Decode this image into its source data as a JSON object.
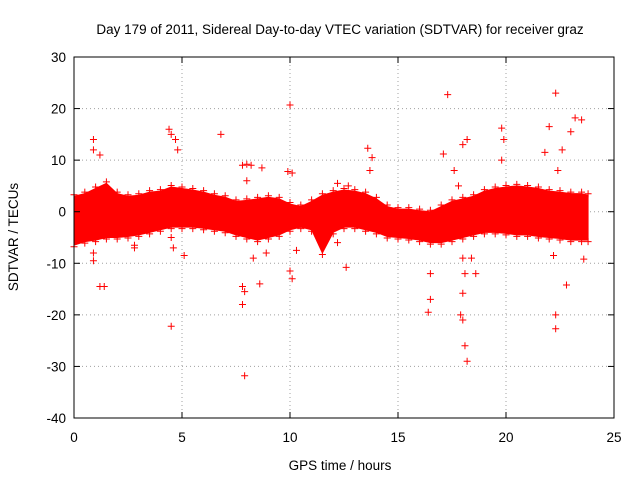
{
  "chart_data": {
    "type": "scatter",
    "title": "Day 179 of 2011, Sidereal Day-to-day VTEC variation (SDTVAR) for receiver graz",
    "xlabel": "GPS time / hours",
    "ylabel": "SDTVAR / TECUs",
    "xlim": [
      0,
      25
    ],
    "ylim": [
      -40,
      30
    ],
    "xticks": [
      0,
      5,
      10,
      15,
      20,
      25
    ],
    "yticks": [
      -40,
      -30,
      -20,
      -10,
      0,
      10,
      20,
      30
    ],
    "grid": true,
    "legend": "none",
    "marker": "+",
    "series_color": "#ff0000",
    "band_data": {
      "description": "dense point cloud: approximate upper/lower envelope of the bulk of points",
      "x": [
        0.0,
        0.5,
        1.0,
        1.5,
        2.0,
        2.5,
        3.0,
        3.5,
        4.0,
        4.5,
        5.0,
        5.5,
        6.0,
        6.5,
        7.0,
        7.5,
        8.0,
        8.5,
        9.0,
        9.5,
        10.0,
        10.5,
        11.0,
        11.5,
        12.0,
        12.5,
        13.0,
        13.5,
        14.0,
        14.5,
        15.0,
        15.5,
        16.0,
        16.5,
        17.0,
        17.5,
        18.0,
        18.5,
        19.0,
        19.5,
        20.0,
        20.5,
        21.0,
        21.5,
        22.0,
        22.5,
        23.0,
        23.5,
        23.8
      ],
      "upper": [
        3.0,
        3.5,
        4.5,
        5.5,
        3.5,
        3.0,
        3.2,
        3.8,
        4.0,
        4.8,
        4.5,
        4.2,
        3.8,
        3.2,
        2.8,
        2.0,
        2.2,
        2.5,
        2.8,
        2.5,
        1.5,
        1.0,
        2.0,
        3.2,
        3.8,
        4.2,
        4.0,
        3.5,
        2.5,
        1.0,
        0.5,
        0.5,
        0.2,
        0.0,
        1.0,
        2.0,
        2.5,
        3.0,
        4.0,
        4.5,
        4.8,
        5.0,
        4.8,
        4.5,
        4.0,
        3.8,
        3.5,
        3.5,
        3.2
      ],
      "lower": [
        -6.5,
        -5.8,
        -5.5,
        -5.0,
        -5.0,
        -4.8,
        -4.5,
        -4.0,
        -3.5,
        -3.0,
        -3.0,
        -3.0,
        -3.2,
        -3.5,
        -3.8,
        -4.5,
        -5.0,
        -5.5,
        -5.0,
        -4.5,
        -3.5,
        -3.0,
        -3.5,
        -8.0,
        -4.0,
        -3.0,
        -3.0,
        -3.5,
        -4.0,
        -4.8,
        -5.0,
        -5.2,
        -5.5,
        -6.0,
        -6.0,
        -5.5,
        -5.0,
        -4.5,
        -4.0,
        -4.0,
        -4.2,
        -4.5,
        -4.5,
        -4.8,
        -5.0,
        -5.2,
        -5.5,
        -5.5,
        -5.5
      ]
    },
    "outlier_points": [
      {
        "x": 0.9,
        "y": 14.0
      },
      {
        "x": 0.9,
        "y": 12.0
      },
      {
        "x": 1.2,
        "y": 11.0
      },
      {
        "x": 0.9,
        "y": -8.0
      },
      {
        "x": 0.9,
        "y": -9.5
      },
      {
        "x": 1.2,
        "y": -14.5
      },
      {
        "x": 1.4,
        "y": -14.5
      },
      {
        "x": 2.8,
        "y": -7.0
      },
      {
        "x": 2.8,
        "y": -6.5
      },
      {
        "x": 4.4,
        "y": 16.0
      },
      {
        "x": 4.5,
        "y": 15.0
      },
      {
        "x": 4.7,
        "y": 14.0
      },
      {
        "x": 4.8,
        "y": 12.0
      },
      {
        "x": 4.5,
        "y": -5.0
      },
      {
        "x": 4.6,
        "y": -7.0
      },
      {
        "x": 4.5,
        "y": -22.2
      },
      {
        "x": 5.1,
        "y": -8.5
      },
      {
        "x": 6.8,
        "y": 15.0
      },
      {
        "x": 7.8,
        "y": 9.0
      },
      {
        "x": 8.0,
        "y": 9.2
      },
      {
        "x": 8.2,
        "y": 9.0
      },
      {
        "x": 8.0,
        "y": 6.0
      },
      {
        "x": 7.8,
        "y": -14.5
      },
      {
        "x": 7.9,
        "y": -15.5
      },
      {
        "x": 7.8,
        "y": -18.0
      },
      {
        "x": 7.9,
        "y": -31.8
      },
      {
        "x": 8.3,
        "y": -9.0
      },
      {
        "x": 8.6,
        "y": -14.0
      },
      {
        "x": 8.9,
        "y": -8.0
      },
      {
        "x": 8.7,
        "y": 8.5
      },
      {
        "x": 10.0,
        "y": 20.7
      },
      {
        "x": 9.9,
        "y": 7.8
      },
      {
        "x": 10.1,
        "y": 7.5
      },
      {
        "x": 10.0,
        "y": -11.5
      },
      {
        "x": 10.1,
        "y": -13.0
      },
      {
        "x": 10.3,
        "y": -7.5
      },
      {
        "x": 12.2,
        "y": 5.5
      },
      {
        "x": 12.7,
        "y": 5.0
      },
      {
        "x": 12.2,
        "y": -6.0
      },
      {
        "x": 12.6,
        "y": -10.8
      },
      {
        "x": 13.6,
        "y": 12.3
      },
      {
        "x": 13.8,
        "y": 10.5
      },
      {
        "x": 13.7,
        "y": 8.0
      },
      {
        "x": 16.5,
        "y": -17.0
      },
      {
        "x": 16.4,
        "y": -19.5
      },
      {
        "x": 16.5,
        "y": -12.0
      },
      {
        "x": 17.3,
        "y": 22.7
      },
      {
        "x": 17.1,
        "y": 11.2
      },
      {
        "x": 17.6,
        "y": 8.0
      },
      {
        "x": 17.8,
        "y": 5.0
      },
      {
        "x": 18.0,
        "y": 13.0
      },
      {
        "x": 18.2,
        "y": 14.0
      },
      {
        "x": 18.0,
        "y": -9.0
      },
      {
        "x": 18.1,
        "y": -12.0
      },
      {
        "x": 18.0,
        "y": -15.8
      },
      {
        "x": 17.9,
        "y": -20.0
      },
      {
        "x": 18.0,
        "y": -21.0
      },
      {
        "x": 18.1,
        "y": -26.0
      },
      {
        "x": 18.2,
        "y": -29.0
      },
      {
        "x": 18.4,
        "y": -9.0
      },
      {
        "x": 18.6,
        "y": -12.0
      },
      {
        "x": 19.8,
        "y": 16.2
      },
      {
        "x": 19.9,
        "y": 14.0
      },
      {
        "x": 19.8,
        "y": 10.0
      },
      {
        "x": 21.8,
        "y": 11.5
      },
      {
        "x": 22.0,
        "y": 16.5
      },
      {
        "x": 22.3,
        "y": 23.0
      },
      {
        "x": 22.4,
        "y": 8.0
      },
      {
        "x": 22.6,
        "y": 12.0
      },
      {
        "x": 22.2,
        "y": -8.5
      },
      {
        "x": 22.3,
        "y": -20.0
      },
      {
        "x": 22.3,
        "y": -22.7
      },
      {
        "x": 22.8,
        "y": -14.2
      },
      {
        "x": 23.0,
        "y": 15.5
      },
      {
        "x": 23.2,
        "y": 18.2
      },
      {
        "x": 23.5,
        "y": 17.8
      },
      {
        "x": 23.6,
        "y": -9.2
      }
    ]
  }
}
